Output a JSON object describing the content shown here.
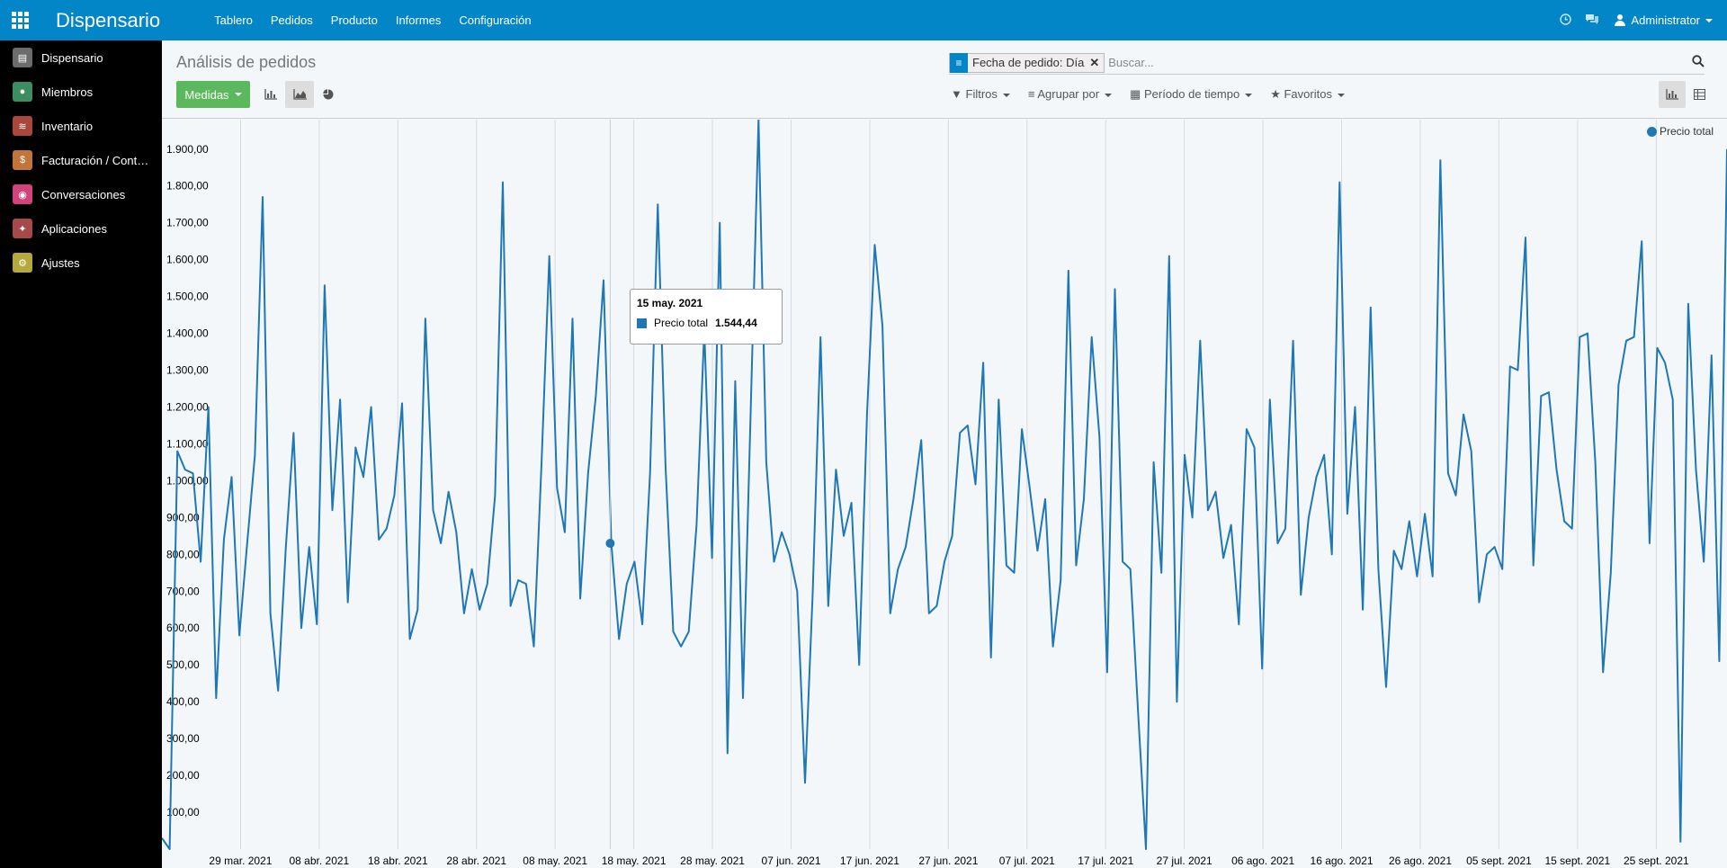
{
  "topbar": {
    "brand": "Dispensario",
    "menu": [
      "Tablero",
      "Pedidos",
      "Producto",
      "Informes",
      "Configuración"
    ],
    "user": "Administrator",
    "icons": [
      "clock-icon",
      "chat-icon"
    ]
  },
  "sidebar": {
    "items": [
      {
        "label": "Dispensario",
        "color": "#6c6c6c"
      },
      {
        "label": "Miembros",
        "color": "#3d8d62"
      },
      {
        "label": "Inventario",
        "color": "#a9473b"
      },
      {
        "label": "Facturación / Contabilidad",
        "color": "#c1753b"
      },
      {
        "label": "Conversaciones",
        "color": "#d1437a"
      },
      {
        "label": "Aplicaciones",
        "color": "#a54a4a"
      },
      {
        "label": "Ajustes",
        "color": "#b5a83c"
      }
    ]
  },
  "control_panel": {
    "title": "Análisis de pedidos",
    "measures_label": "Medidas",
    "facet_value": "Fecha de pedido: Día",
    "search_placeholder": "Buscar...",
    "filters_label": "Filtros",
    "groupby_label": "Agrupar por",
    "period_label": "Período de tiempo",
    "favorites_label": "Favoritos"
  },
  "colors": {
    "series": "#1f77b4",
    "topbar": "#0386c7",
    "measures": "#5cb85c"
  },
  "tooltip": {
    "date": "15 may. 2021",
    "label": "Precio total",
    "value": "1.544,44"
  },
  "chart_data": {
    "type": "line",
    "title": "",
    "xlabel": "",
    "ylabel": "",
    "ylim": [
      0,
      1980
    ],
    "y_ticks": [
      "100,00",
      "200,00",
      "300,00",
      "400,00",
      "500,00",
      "600,00",
      "700,00",
      "800,00",
      "900,00",
      "1.000,00",
      "1.100,00",
      "1.200,00",
      "1.300,00",
      "1.400,00",
      "1.500,00",
      "1.600,00",
      "1.700,00",
      "1.800,00",
      "1.900,00"
    ],
    "x_tick_labels": [
      "29 mar. 2021",
      "08 abr. 2021",
      "18 abr. 2021",
      "28 abr. 2021",
      "08 may. 2021",
      "18 may. 2021",
      "28 may. 2021",
      "07 jun. 2021",
      "17 jun. 2021",
      "27 jun. 2021",
      "07 jul. 2021",
      "17 jul. 2021",
      "27 jul. 2021",
      "06 ago. 2021",
      "16 ago. 2021",
      "26 ago. 2021",
      "05 sept. 2021",
      "15 sept. 2021",
      "25 sept. 2021"
    ],
    "grid": true,
    "legend": "top-right",
    "series": [
      {
        "name": "Precio total",
        "x_start": "2021-03-19",
        "x_end": "2021-10-04",
        "values": [
          30,
          0,
          1080,
          1030,
          1020,
          780,
          1200,
          410,
          840,
          1010,
          580,
          830,
          1070,
          1770,
          640,
          430,
          820,
          1130,
          600,
          820,
          610,
          1530,
          920,
          1220,
          670,
          1090,
          1010,
          1200,
          840,
          870,
          960,
          1210,
          570,
          650,
          1440,
          920,
          830,
          970,
          860,
          640,
          760,
          650,
          720,
          960,
          1810,
          660,
          730,
          720,
          550,
          1050,
          1610,
          980,
          860,
          1440,
          680,
          1020,
          1230,
          1544,
          830,
          570,
          720,
          780,
          610,
          1020,
          1750,
          1040,
          590,
          550,
          590,
          880,
          1410,
          790,
          1700,
          260,
          1270,
          410,
          1200,
          1980,
          1050,
          780,
          860,
          800,
          700,
          180,
          700,
          1390,
          660,
          1030,
          850,
          940,
          500,
          1180,
          1640,
          1420,
          640,
          760,
          820,
          950,
          1110,
          640,
          660,
          780,
          850,
          1130,
          1150,
          990,
          1320,
          520,
          1220,
          770,
          750,
          1140,
          980,
          810,
          950,
          550,
          730,
          1570,
          770,
          950,
          1390,
          1120,
          480,
          1520,
          780,
          760,
          370,
          0,
          1050,
          750,
          1610,
          400,
          1070,
          900,
          1380,
          920,
          970,
          790,
          880,
          610,
          1140,
          1090,
          490,
          1220,
          830,
          870,
          1380,
          690,
          900,
          1010,
          1070,
          800,
          1810,
          910,
          1200,
          650,
          1470,
          760,
          440,
          810,
          760,
          890,
          740,
          910,
          740,
          1870,
          1020,
          960,
          1180,
          1080,
          670,
          800,
          820,
          760,
          1310,
          1300,
          1660,
          770,
          1230,
          1240,
          1030,
          890,
          870,
          1390,
          1400,
          1050,
          480,
          750,
          1260,
          1380,
          1390,
          1650,
          830,
          1360,
          1320,
          1220,
          20,
          1480,
          1030,
          780,
          1340,
          510,
          1900
        ]
      }
    ]
  }
}
